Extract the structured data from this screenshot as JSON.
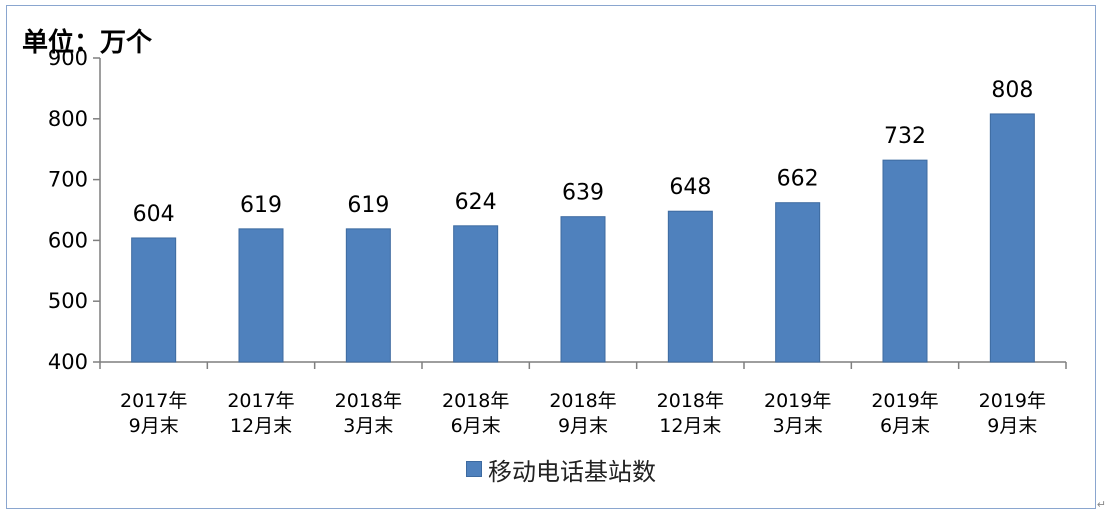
{
  "unit_label": "单位：万个",
  "legend_label": "移动电话基站数",
  "corner_mark": "↵",
  "colors": {
    "bar": "#4f81bd",
    "axis": "#7f7f7f",
    "frame": "#8aa6cf"
  },
  "chart_data": {
    "type": "bar",
    "categories": [
      [
        "2017年",
        "9月末"
      ],
      [
        "2017年",
        "12月末"
      ],
      [
        "2018年",
        "3月末"
      ],
      [
        "2018年",
        "6月末"
      ],
      [
        "2018年",
        "9月末"
      ],
      [
        "2018年",
        "12月末"
      ],
      [
        "2019年",
        "3月末"
      ],
      [
        "2019年",
        "6月末"
      ],
      [
        "2019年",
        "9月末"
      ]
    ],
    "series": [
      {
        "name": "移动电话基站数",
        "values": [
          604,
          619,
          619,
          624,
          639,
          648,
          662,
          732,
          808
        ]
      }
    ],
    "ylim": [
      400,
      900
    ],
    "yticks": [
      400,
      500,
      600,
      700,
      800,
      900
    ],
    "ylabel": "单位：万个",
    "grid": false,
    "legend_position": "bottom"
  }
}
